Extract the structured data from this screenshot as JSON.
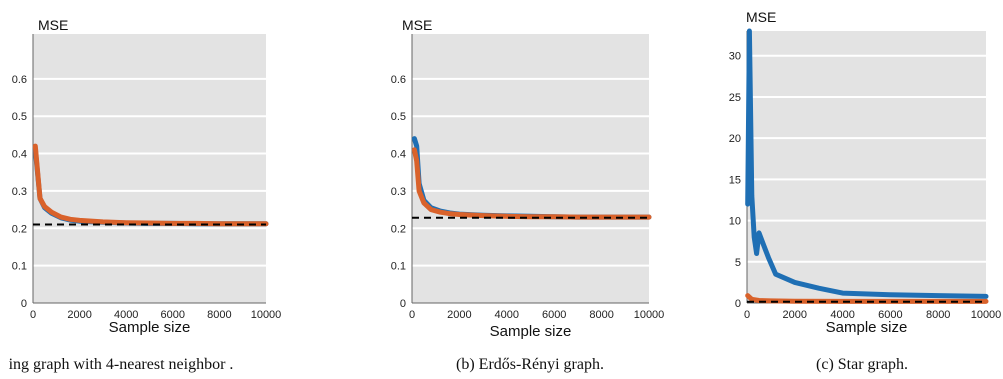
{
  "chart_data": [
    {
      "type": "line",
      "caption": "ing graph with 4-nearest neighbor .",
      "ylabel": "MSE",
      "xlabel": "Sample size",
      "xlim": [
        0,
        10000
      ],
      "ylim": [
        0,
        0.72
      ],
      "xticks": [
        0,
        2000,
        4000,
        6000,
        8000,
        10000
      ],
      "yticks": [
        0,
        0.1,
        0.2,
        0.3,
        0.4,
        0.5,
        0.6
      ],
      "ytick_labels": [
        "0",
        "0.1",
        "0.2",
        "0.3",
        "0.4",
        "0.5",
        "0.6"
      ],
      "grid": true,
      "series": [
        {
          "color": "#1f6fb4",
          "style": "solid",
          "x": [
            100,
            300,
            500,
            800,
            1200,
            1600,
            2000,
            3000,
            4000,
            5000,
            6000,
            7000,
            8000,
            9000,
            10000
          ],
          "y": [
            0.41,
            0.28,
            0.255,
            0.24,
            0.228,
            0.222,
            0.219,
            0.216,
            0.214,
            0.213,
            0.213,
            0.212,
            0.212,
            0.212,
            0.212
          ]
        },
        {
          "color": "#d9622b",
          "style": "solid",
          "x": [
            100,
            300,
            500,
            800,
            1200,
            1600,
            2000,
            3000,
            4000,
            5000,
            6000,
            7000,
            8000,
            9000,
            10000
          ],
          "y": [
            0.42,
            0.28,
            0.258,
            0.243,
            0.23,
            0.224,
            0.221,
            0.217,
            0.215,
            0.214,
            0.213,
            0.213,
            0.212,
            0.212,
            0.212
          ]
        },
        {
          "color": "#000000",
          "style": "dashed",
          "x": [
            0,
            10000
          ],
          "y": [
            0.21,
            0.21
          ]
        }
      ]
    },
    {
      "type": "line",
      "caption": "(b) Erdős-Rényi graph.",
      "ylabel": "MSE",
      "xlabel": "Sample size",
      "xlim": [
        0,
        10000
      ],
      "ylim": [
        0,
        0.72
      ],
      "xticks": [
        0,
        2000,
        4000,
        6000,
        8000,
        10000
      ],
      "yticks": [
        0,
        0.1,
        0.2,
        0.3,
        0.4,
        0.5,
        0.6
      ],
      "ytick_labels": [
        "0",
        "0.1",
        "0.2",
        "0.3",
        "0.4",
        "0.5",
        "0.6"
      ],
      "grid": true,
      "series": [
        {
          "color": "#1f6fb4",
          "style": "solid",
          "x": [
            100,
            200,
            300,
            500,
            800,
            1200,
            1600,
            2000,
            3000,
            4000,
            5000,
            6000,
            7000,
            8000,
            9000,
            10000
          ],
          "y": [
            0.44,
            0.42,
            0.32,
            0.275,
            0.255,
            0.246,
            0.241,
            0.238,
            0.235,
            0.233,
            0.232,
            0.231,
            0.23,
            0.23,
            0.23,
            0.23
          ]
        },
        {
          "color": "#d9622b",
          "style": "solid",
          "x": [
            100,
            200,
            300,
            500,
            800,
            1200,
            1600,
            2000,
            3000,
            4000,
            5000,
            6000,
            7000,
            8000,
            9000,
            10000
          ],
          "y": [
            0.41,
            0.38,
            0.3,
            0.268,
            0.25,
            0.243,
            0.239,
            0.237,
            0.234,
            0.232,
            0.231,
            0.231,
            0.23,
            0.23,
            0.23,
            0.23
          ]
        },
        {
          "color": "#000000",
          "style": "dashed",
          "x": [
            0,
            10000
          ],
          "y": [
            0.228,
            0.228
          ]
        }
      ]
    },
    {
      "type": "line",
      "caption": "(c) Star graph.",
      "ylabel": "MSE",
      "xlabel": "Sample size",
      "xlim": [
        0,
        10000
      ],
      "ylim": [
        0,
        33
      ],
      "xticks": [
        0,
        2000,
        4000,
        6000,
        8000,
        10000
      ],
      "yticks": [
        0,
        5,
        10,
        15,
        20,
        25,
        30
      ],
      "ytick_labels": [
        "0",
        "5",
        "10",
        "15",
        "20",
        "25",
        "30"
      ],
      "grid": true,
      "series": [
        {
          "color": "#1f6fb4",
          "style": "solid",
          "x": [
            30,
            100,
            200,
            300,
            400,
            500,
            700,
            900,
            1200,
            2000,
            3000,
            4000,
            6000,
            8000,
            10000
          ],
          "y": [
            12,
            33,
            13,
            8,
            6,
            8.5,
            7,
            5.5,
            3.5,
            2.5,
            1.8,
            1.2,
            1.0,
            0.9,
            0.8
          ]
        },
        {
          "color": "#d9622b",
          "style": "solid",
          "x": [
            30,
            200,
            500,
            1000,
            2000,
            4000,
            10000
          ],
          "y": [
            0.9,
            0.45,
            0.3,
            0.25,
            0.22,
            0.2,
            0.2
          ]
        },
        {
          "color": "#000000",
          "style": "dashed",
          "x": [
            0,
            10000
          ],
          "y": [
            0.15,
            0.15
          ]
        }
      ]
    }
  ]
}
